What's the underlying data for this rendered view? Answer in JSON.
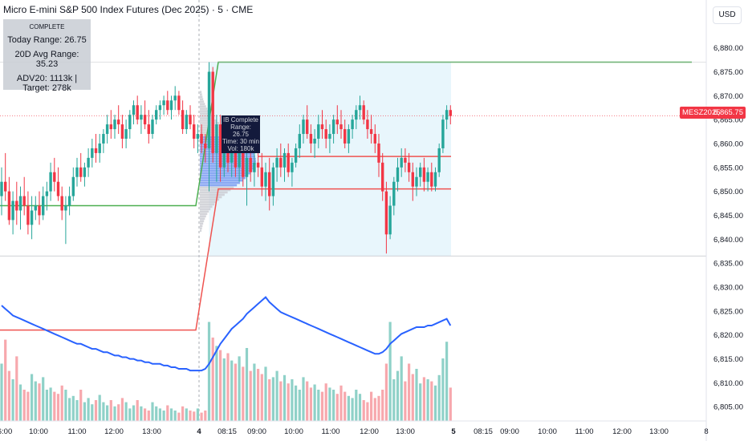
{
  "header": {
    "title": "Micro E-mini S&P 500 Index Futures (Dec 2025) · 5 · CME",
    "currency": "USD"
  },
  "info_panel": {
    "status": "COMPLETE",
    "today_range": "Today Range: 26.75",
    "avg_range": "20D Avg Range: 35.23",
    "adv": "ADV20: 1113k | Target: 278k"
  },
  "ib_label": {
    "line1": "IB Complete",
    "line2": "Range: 26.75",
    "line3": "Time: 30 min",
    "line4": "Vol: 180k"
  },
  "last_price": {
    "symbol": "MESZ2025",
    "value": "6,865.75"
  },
  "colors": {
    "up": "#26a69a",
    "down": "#f23645",
    "up_volume": "#8fd1c8",
    "down_volume": "#f7a8ad",
    "volume_ma": "#2962ff",
    "ib_high_line": "#4caf50",
    "ib_low_line": "#ef5350",
    "profile_gray": "#c9cbd1",
    "profile_blue": "#6b8ff0",
    "ib_zone": "#e8f6fc"
  },
  "chart_data": {
    "type": "candlestick",
    "y_axis": {
      "range": [
        6802,
        6890
      ],
      "ticks": [
        "6,880.00",
        "6,875.00",
        "6,870.00",
        "6,865.00",
        "6,860.00",
        "6,855.00",
        "6,850.00",
        "6,845.00",
        "6,840.00",
        "6,835.00",
        "6,830.00",
        "6,825.00",
        "6,820.00",
        "6,815.00",
        "6,810.00",
        "6,805.00"
      ]
    },
    "x_axis": {
      "ticks": [
        "6:00",
        "10:00",
        "11:00",
        "12:00",
        "13:00",
        "4",
        "08:15",
        "09:00",
        "10:00",
        "11:00",
        "12:00",
        "13:00",
        "5",
        "08:15",
        "09:00",
        "10:00",
        "11:00",
        "12:00",
        "13:00",
        "8"
      ]
    },
    "session_breaks": [
      "4",
      "5"
    ],
    "reference_lines": [
      {
        "name": "ib-high",
        "values": [
          6847,
          6847,
          6877,
          6877
        ]
      },
      {
        "name": "ib-low",
        "values": [
          6821,
          6821,
          6850.5,
          6850.5
        ]
      },
      {
        "name": "level",
        "value": 6857.3
      },
      {
        "name": "session-open-high",
        "value": 6877
      },
      {
        "name": "session-low",
        "value": 6836.5
      }
    ],
    "last_price": 6865.75,
    "candles": [
      {
        "o": 6849,
        "h": 6855,
        "l": 6845,
        "c": 6852
      },
      {
        "o": 6852,
        "h": 6858,
        "l": 6848,
        "c": 6850
      },
      {
        "o": 6850,
        "h": 6853,
        "l": 6843,
        "c": 6844
      },
      {
        "o": 6844,
        "h": 6850,
        "l": 6841,
        "c": 6848
      },
      {
        "o": 6848,
        "h": 6852,
        "l": 6843,
        "c": 6846
      },
      {
        "o": 6846,
        "h": 6851,
        "l": 6842,
        "c": 6849
      },
      {
        "o": 6849,
        "h": 6853,
        "l": 6845,
        "c": 6847
      },
      {
        "o": 6847,
        "h": 6850,
        "l": 6841,
        "c": 6843
      },
      {
        "o": 6843,
        "h": 6849,
        "l": 6840,
        "c": 6846
      },
      {
        "o": 6846,
        "h": 6849,
        "l": 6844,
        "c": 6847
      },
      {
        "o": 6847,
        "h": 6850,
        "l": 6843,
        "c": 6845
      },
      {
        "o": 6845,
        "h": 6851,
        "l": 6844,
        "c": 6849
      },
      {
        "o": 6849,
        "h": 6852,
        "l": 6846,
        "c": 6850
      },
      {
        "o": 6850,
        "h": 6856,
        "l": 6848,
        "c": 6854
      },
      {
        "o": 6854,
        "h": 6857,
        "l": 6850,
        "c": 6852
      },
      {
        "o": 6852,
        "h": 6855,
        "l": 6848,
        "c": 6849
      },
      {
        "o": 6849,
        "h": 6851,
        "l": 6844,
        "c": 6846
      },
      {
        "o": 6846,
        "h": 6849,
        "l": 6839,
        "c": 6847
      },
      {
        "o": 6847,
        "h": 6851,
        "l": 6845,
        "c": 6849
      },
      {
        "o": 6849,
        "h": 6855,
        "l": 6848,
        "c": 6853
      },
      {
        "o": 6853,
        "h": 6857,
        "l": 6851,
        "c": 6855
      },
      {
        "o": 6855,
        "h": 6858,
        "l": 6852,
        "c": 6853
      },
      {
        "o": 6853,
        "h": 6856,
        "l": 6851,
        "c": 6855
      },
      {
        "o": 6855,
        "h": 6859,
        "l": 6853,
        "c": 6857
      },
      {
        "o": 6857,
        "h": 6861,
        "l": 6855,
        "c": 6859
      },
      {
        "o": 6859,
        "h": 6862,
        "l": 6856,
        "c": 6858
      },
      {
        "o": 6858,
        "h": 6862,
        "l": 6856,
        "c": 6860
      },
      {
        "o": 6860,
        "h": 6863,
        "l": 6858,
        "c": 6862
      },
      {
        "o": 6862,
        "h": 6866,
        "l": 6860,
        "c": 6864
      },
      {
        "o": 6864,
        "h": 6867,
        "l": 6861,
        "c": 6863
      },
      {
        "o": 6863,
        "h": 6866,
        "l": 6861,
        "c": 6865
      },
      {
        "o": 6865,
        "h": 6868,
        "l": 6862,
        "c": 6864
      },
      {
        "o": 6864,
        "h": 6866,
        "l": 6859,
        "c": 6861
      },
      {
        "o": 6861,
        "h": 6865,
        "l": 6859,
        "c": 6863
      },
      {
        "o": 6863,
        "h": 6867,
        "l": 6861,
        "c": 6866
      },
      {
        "o": 6866,
        "h": 6869,
        "l": 6864,
        "c": 6868
      },
      {
        "o": 6868,
        "h": 6870,
        "l": 6864,
        "c": 6865
      },
      {
        "o": 6865,
        "h": 6868,
        "l": 6862,
        "c": 6866
      },
      {
        "o": 6866,
        "h": 6869,
        "l": 6863,
        "c": 6864
      },
      {
        "o": 6864,
        "h": 6867,
        "l": 6860,
        "c": 6862
      },
      {
        "o": 6862,
        "h": 6866,
        "l": 6861,
        "c": 6865
      },
      {
        "o": 6865,
        "h": 6868,
        "l": 6864,
        "c": 6867
      },
      {
        "o": 6867,
        "h": 6869,
        "l": 6865,
        "c": 6868
      },
      {
        "o": 6868,
        "h": 6870,
        "l": 6866,
        "c": 6869
      },
      {
        "o": 6869,
        "h": 6871,
        "l": 6866,
        "c": 6867
      },
      {
        "o": 6867,
        "h": 6870,
        "l": 6865,
        "c": 6869
      },
      {
        "o": 6869,
        "h": 6872,
        "l": 6867,
        "c": 6870
      },
      {
        "o": 6870,
        "h": 6871,
        "l": 6866,
        "c": 6867
      },
      {
        "o": 6867,
        "h": 6869,
        "l": 6862,
        "c": 6863
      },
      {
        "o": 6863,
        "h": 6867,
        "l": 6862,
        "c": 6866
      },
      {
        "o": 6866,
        "h": 6868,
        "l": 6863,
        "c": 6864
      },
      {
        "o": 6864,
        "h": 6866,
        "l": 6859,
        "c": 6861
      },
      {
        "o": 6861,
        "h": 6864,
        "l": 6858,
        "c": 6862
      },
      {
        "o": 6862,
        "h": 6864,
        "l": 6858,
        "c": 6860
      },
      {
        "o": 6860,
        "h": 6862,
        "l": 6856,
        "c": 6859
      },
      {
        "o": 6859,
        "h": 6877,
        "l": 6850,
        "c": 6875
      },
      {
        "o": 6875,
        "h": 6876,
        "l": 6856,
        "c": 6858
      },
      {
        "o": 6858,
        "h": 6866,
        "l": 6852,
        "c": 6864
      },
      {
        "o": 6864,
        "h": 6866,
        "l": 6852,
        "c": 6855
      },
      {
        "o": 6855,
        "h": 6862,
        "l": 6853,
        "c": 6860
      },
      {
        "o": 6860,
        "h": 6863,
        "l": 6854,
        "c": 6856
      },
      {
        "o": 6856,
        "h": 6861,
        "l": 6853,
        "c": 6858
      },
      {
        "o": 6858,
        "h": 6862,
        "l": 6853,
        "c": 6855
      },
      {
        "o": 6855,
        "h": 6860,
        "l": 6852,
        "c": 6858
      },
      {
        "o": 6858,
        "h": 6861,
        "l": 6851,
        "c": 6853
      },
      {
        "o": 6853,
        "h": 6858,
        "l": 6847,
        "c": 6857
      },
      {
        "o": 6857,
        "h": 6859,
        "l": 6852,
        "c": 6854
      },
      {
        "o": 6854,
        "h": 6858,
        "l": 6851,
        "c": 6856
      },
      {
        "o": 6856,
        "h": 6860,
        "l": 6853,
        "c": 6855
      },
      {
        "o": 6855,
        "h": 6858,
        "l": 6849,
        "c": 6851
      },
      {
        "o": 6851,
        "h": 6856,
        "l": 6848,
        "c": 6854
      },
      {
        "o": 6854,
        "h": 6857,
        "l": 6846,
        "c": 6849
      },
      {
        "o": 6849,
        "h": 6856,
        "l": 6847,
        "c": 6855
      },
      {
        "o": 6855,
        "h": 6859,
        "l": 6852,
        "c": 6857
      },
      {
        "o": 6857,
        "h": 6860,
        "l": 6853,
        "c": 6855
      },
      {
        "o": 6855,
        "h": 6859,
        "l": 6852,
        "c": 6858
      },
      {
        "o": 6858,
        "h": 6860,
        "l": 6853,
        "c": 6854
      },
      {
        "o": 6854,
        "h": 6857,
        "l": 6851,
        "c": 6856
      },
      {
        "o": 6856,
        "h": 6860,
        "l": 6855,
        "c": 6859
      },
      {
        "o": 6859,
        "h": 6864,
        "l": 6857,
        "c": 6862
      },
      {
        "o": 6862,
        "h": 6866,
        "l": 6860,
        "c": 6865
      },
      {
        "o": 6865,
        "h": 6868,
        "l": 6861,
        "c": 6862
      },
      {
        "o": 6862,
        "h": 6864,
        "l": 6858,
        "c": 6860
      },
      {
        "o": 6860,
        "h": 6863,
        "l": 6857,
        "c": 6861
      },
      {
        "o": 6861,
        "h": 6866,
        "l": 6859,
        "c": 6864
      },
      {
        "o": 6864,
        "h": 6867,
        "l": 6861,
        "c": 6863
      },
      {
        "o": 6863,
        "h": 6865,
        "l": 6859,
        "c": 6861
      },
      {
        "o": 6861,
        "h": 6864,
        "l": 6858,
        "c": 6862
      },
      {
        "o": 6862,
        "h": 6866,
        "l": 6860,
        "c": 6865
      },
      {
        "o": 6865,
        "h": 6868,
        "l": 6862,
        "c": 6864
      },
      {
        "o": 6864,
        "h": 6867,
        "l": 6861,
        "c": 6863
      },
      {
        "o": 6863,
        "h": 6865,
        "l": 6859,
        "c": 6860
      },
      {
        "o": 6860,
        "h": 6864,
        "l": 6858,
        "c": 6863
      },
      {
        "o": 6863,
        "h": 6866,
        "l": 6861,
        "c": 6865
      },
      {
        "o": 6865,
        "h": 6868,
        "l": 6863,
        "c": 6867
      },
      {
        "o": 6867,
        "h": 6870,
        "l": 6865,
        "c": 6868
      },
      {
        "o": 6868,
        "h": 6869,
        "l": 6864,
        "c": 6865
      },
      {
        "o": 6865,
        "h": 6867,
        "l": 6861,
        "c": 6863
      },
      {
        "o": 6863,
        "h": 6866,
        "l": 6860,
        "c": 6862
      },
      {
        "o": 6862,
        "h": 6864,
        "l": 6858,
        "c": 6860
      },
      {
        "o": 6860,
        "h": 6862,
        "l": 6853,
        "c": 6856
      },
      {
        "o": 6856,
        "h": 6858,
        "l": 6848,
        "c": 6850
      },
      {
        "o": 6850,
        "h": 6852,
        "l": 6837,
        "c": 6841
      },
      {
        "o": 6841,
        "h": 6849,
        "l": 6840,
        "c": 6847
      },
      {
        "o": 6847,
        "h": 6853,
        "l": 6845,
        "c": 6852
      },
      {
        "o": 6852,
        "h": 6857,
        "l": 6850,
        "c": 6855
      },
      {
        "o": 6855,
        "h": 6859,
        "l": 6853,
        "c": 6857
      },
      {
        "o": 6857,
        "h": 6859,
        "l": 6854,
        "c": 6856
      },
      {
        "o": 6856,
        "h": 6858,
        "l": 6852,
        "c": 6854
      },
      {
        "o": 6854,
        "h": 6856,
        "l": 6848,
        "c": 6851
      },
      {
        "o": 6851,
        "h": 6855,
        "l": 6849,
        "c": 6853
      },
      {
        "o": 6853,
        "h": 6856,
        "l": 6851,
        "c": 6855
      },
      {
        "o": 6855,
        "h": 6857,
        "l": 6850,
        "c": 6852
      },
      {
        "o": 6852,
        "h": 6855,
        "l": 6850,
        "c": 6854
      },
      {
        "o": 6854,
        "h": 6856,
        "l": 6850,
        "c": 6851
      },
      {
        "o": 6851,
        "h": 6855,
        "l": 6850,
        "c": 6854
      },
      {
        "o": 6854,
        "h": 6860,
        "l": 6853,
        "c": 6859
      },
      {
        "o": 6859,
        "h": 6866,
        "l": 6858,
        "c": 6865
      },
      {
        "o": 6865,
        "h": 6868,
        "l": 6863,
        "c": 6867
      },
      {
        "o": 6867,
        "h": 6868,
        "l": 6864,
        "c": 6865.75
      }
    ],
    "volume": [
      55,
      78,
      48,
      40,
      62,
      35,
      30,
      28,
      45,
      38,
      36,
      42,
      30,
      32,
      28,
      26,
      34,
      30,
      22,
      24,
      20,
      30,
      18,
      22,
      16,
      20,
      25,
      18,
      15,
      20,
      14,
      16,
      22,
      18,
      12,
      15,
      20,
      14,
      12,
      10,
      18,
      14,
      12,
      10,
      15,
      12,
      10,
      8,
      14,
      12,
      10,
      9,
      12,
      8,
      10,
      95,
      80,
      72,
      68,
      60,
      65,
      58,
      55,
      62,
      52,
      70,
      48,
      55,
      50,
      45,
      52,
      40,
      42,
      48,
      38,
      44,
      36,
      40,
      34,
      30,
      42,
      38,
      32,
      35,
      30,
      28,
      36,
      32,
      30,
      26,
      34,
      28,
      24,
      22,
      30,
      26,
      20,
      18,
      28,
      22,
      24,
      30,
      55,
      95,
      40,
      48,
      62,
      38,
      55,
      45,
      50,
      36,
      42,
      40,
      38,
      34,
      44,
      60,
      76,
      32
    ],
    "volume_ma": [
      50,
      48,
      46,
      44,
      43,
      42,
      41,
      40,
      39,
      38,
      37,
      36,
      35,
      34,
      33,
      32,
      31,
      30,
      29,
      28,
      27,
      27,
      26,
      25,
      24,
      24,
      23,
      22,
      22,
      21,
      20,
      20,
      19,
      19,
      18,
      18,
      17,
      17,
      16,
      16,
      15,
      15,
      15,
      14,
      14,
      13,
      13,
      12,
      12,
      12,
      11,
      11,
      11,
      11,
      12,
      15,
      19,
      23,
      27,
      30,
      33,
      36,
      38,
      40,
      42,
      45,
      47,
      49,
      51,
      53,
      55,
      52,
      50,
      48,
      46,
      45,
      44,
      43,
      42,
      41,
      40,
      39,
      38,
      37,
      36,
      35,
      34,
      33,
      32,
      31,
      30,
      29,
      28,
      27,
      26,
      25,
      24,
      23,
      22,
      21,
      21,
      22,
      24,
      27,
      29,
      31,
      33,
      34,
      35,
      36,
      37,
      37,
      37,
      38,
      38,
      39,
      40,
      41,
      42,
      38
    ]
  }
}
